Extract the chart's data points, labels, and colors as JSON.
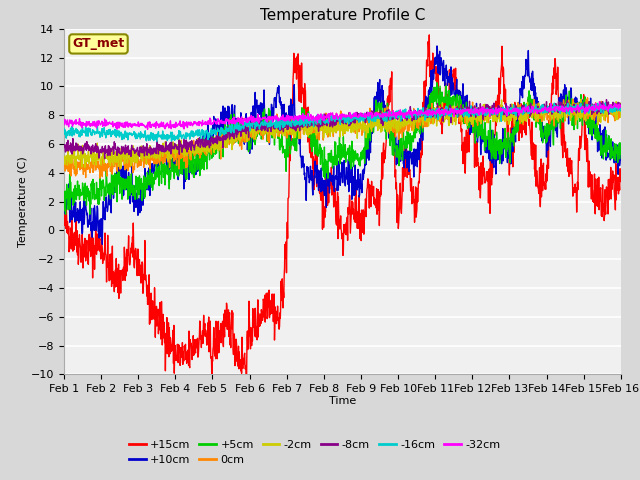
{
  "title": "Temperature Profile C",
  "xlabel": "Time",
  "ylabel": "Temperature (C)",
  "ylim": [
    -10,
    14
  ],
  "yticks": [
    -10,
    -8,
    -6,
    -4,
    -2,
    0,
    2,
    4,
    6,
    8,
    10,
    12,
    14
  ],
  "xtick_labels": [
    "Feb 1",
    "Feb 2",
    "Feb 3",
    "Feb 4",
    "Feb 5",
    "Feb 6",
    "Feb 7",
    "Feb 8",
    "Feb 9",
    "Feb 10",
    "Feb 11",
    "Feb 12",
    "Feb 13",
    "Feb 14",
    "Feb 15",
    "Feb 16"
  ],
  "series_colors": {
    "+15cm": "#ff0000",
    "+10cm": "#0000cc",
    "+5cm": "#00cc00",
    "0cm": "#ff8800",
    "-2cm": "#cccc00",
    "-8cm": "#880088",
    "-16cm": "#00cccc",
    "-32cm": "#ff00ff"
  },
  "legend_label": "GT_met",
  "bg_color": "#d8d8d8",
  "plot_bg": "#f0f0f0",
  "grid_color": "#ffffff",
  "title_fontsize": 11,
  "axis_fontsize": 8,
  "tick_fontsize": 8,
  "legend_box_facecolor": "#ffff99",
  "legend_box_edge": "#888800",
  "legend_text_color": "#880000"
}
